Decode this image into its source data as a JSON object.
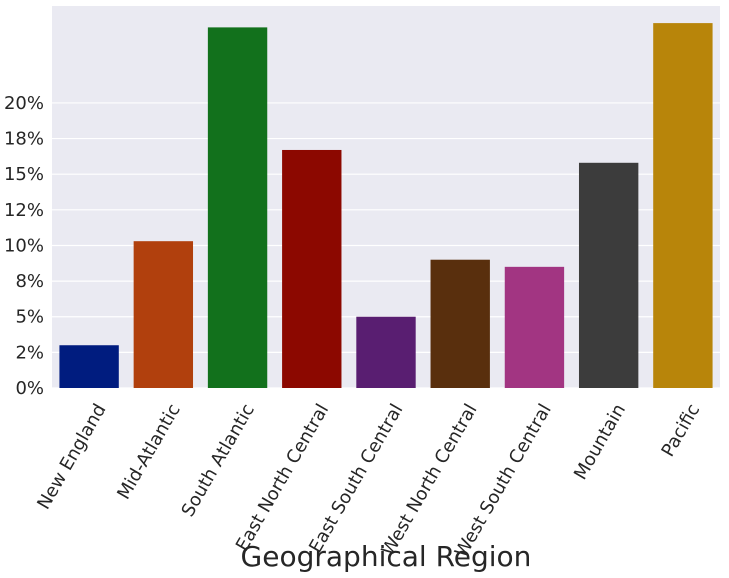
{
  "chart_data": {
    "type": "bar",
    "title": "",
    "xlabel": "Geographical Region",
    "ylabel": "",
    "categories": [
      "New England",
      "Mid-Atlantic",
      "South Atlantic",
      "East North Central",
      "East South Central",
      "West North Central",
      "West South Central",
      "Mountain",
      "Pacific"
    ],
    "values": [
      3.0,
      10.3,
      25.3,
      16.7,
      5.0,
      9.0,
      8.5,
      15.8,
      25.6
    ],
    "colors": [
      "#001c7f",
      "#b1400d",
      "#12711c",
      "#8c0800",
      "#591e71",
      "#592f0d",
      "#a23582",
      "#3c3c3c",
      "#b8850a"
    ],
    "ylim": [
      0,
      26.8
    ],
    "yticks": [
      0,
      2.5,
      5,
      7.5,
      10,
      12.5,
      15,
      17.5,
      20
    ],
    "ytick_labels": [
      "0%",
      "2%",
      "5%",
      "8%",
      "10%",
      "12%",
      "15%",
      "18%",
      "20%"
    ],
    "grid": true,
    "background": "#eaeaf2"
  }
}
